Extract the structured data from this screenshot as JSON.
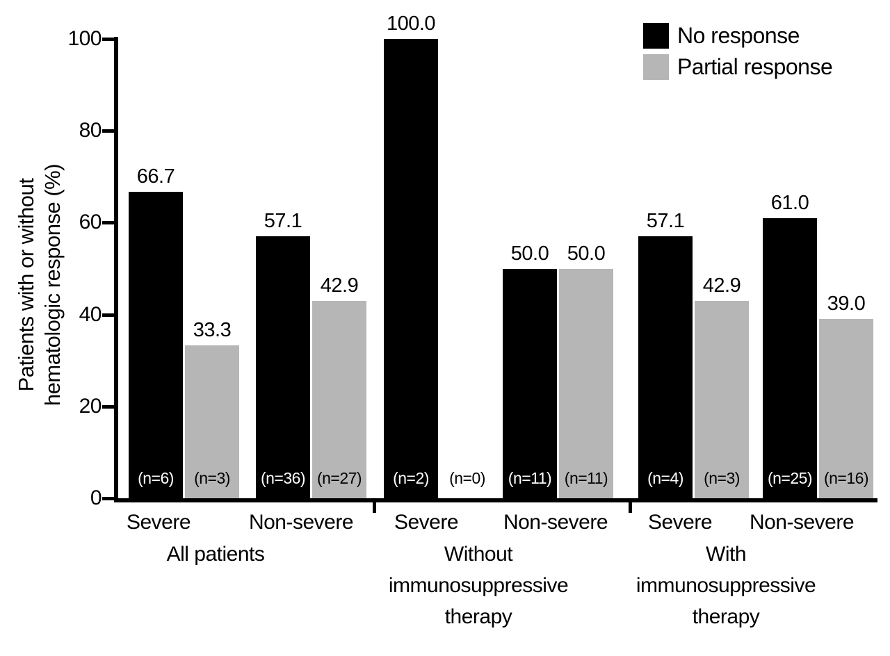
{
  "chart_data": {
    "type": "bar",
    "title": "",
    "ylabel": "Patients with or without hematologic response (%)",
    "ylabel_lines": [
      "Patients with or without",
      "hematologic response (%)"
    ],
    "ylim": [
      0,
      100
    ],
    "yticks": [
      "0",
      "20",
      "40",
      "60",
      "80",
      "100"
    ],
    "grid": "off",
    "legend_position": "top-right",
    "legend": [
      {
        "label": "No response",
        "color": "#000000"
      },
      {
        "label": "Partial response",
        "color": "#b6b6b6"
      }
    ],
    "n_label_format": "(n={n})",
    "groups": [
      {
        "label": "All patients",
        "label_lines": [
          "All patients"
        ]
      },
      {
        "label": "Without immunosuppressive therapy",
        "label_lines": [
          "Without",
          "immunosuppressive",
          "therapy"
        ]
      },
      {
        "label": "With immunosuppressive therapy",
        "label_lines": [
          "With",
          "immunosuppressive",
          "therapy"
        ]
      }
    ],
    "columns": [
      {
        "group": 0,
        "severity": "Severe",
        "bars": [
          {
            "series": "No response",
            "value": 66.7,
            "n": 6
          },
          {
            "series": "Partial response",
            "value": 33.3,
            "n": 3
          }
        ]
      },
      {
        "group": 0,
        "severity": "Non-severe",
        "bars": [
          {
            "series": "No response",
            "value": 57.1,
            "n": 36
          },
          {
            "series": "Partial response",
            "value": 42.9,
            "n": 27
          }
        ]
      },
      {
        "group": 1,
        "severity": "Severe",
        "bars": [
          {
            "series": "No response",
            "value": 100.0,
            "n": 2
          },
          {
            "series": "Partial response",
            "value": 0.0,
            "n": 0
          }
        ]
      },
      {
        "group": 1,
        "severity": "Non-severe",
        "bars": [
          {
            "series": "No response",
            "value": 50.0,
            "n": 11
          },
          {
            "series": "Partial response",
            "value": 50.0,
            "n": 11
          }
        ]
      },
      {
        "group": 2,
        "severity": "Severe",
        "bars": [
          {
            "series": "No response",
            "value": 57.1,
            "n": 4
          },
          {
            "series": "Partial response",
            "value": 42.9,
            "n": 3
          }
        ]
      },
      {
        "group": 2,
        "severity": "Non-severe",
        "bars": [
          {
            "series": "No response",
            "value": 61.0,
            "n": 25
          },
          {
            "series": "Partial response",
            "value": 39.0,
            "n": 16
          }
        ]
      }
    ]
  }
}
